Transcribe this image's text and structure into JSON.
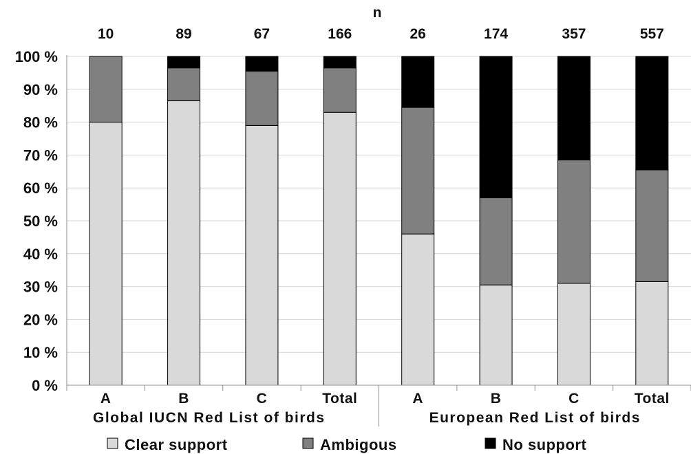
{
  "chart_data": {
    "type": "bar",
    "stacked": true,
    "n_title": "n",
    "n_values": [
      "10",
      "89",
      "67",
      "166",
      "26",
      "174",
      "357",
      "557"
    ],
    "categories": [
      "A",
      "B",
      "C",
      "Total",
      "A",
      "B",
      "C",
      "Total"
    ],
    "groups": [
      {
        "label": "Global IUCN Red List of birds",
        "span": [
          0,
          3
        ]
      },
      {
        "label": "European Red List of birds",
        "span": [
          4,
          7
        ]
      }
    ],
    "ylim": [
      0,
      100
    ],
    "y_ticks": [
      "0 %",
      "10 %",
      "20 %",
      "30 %",
      "40 %",
      "50 %",
      "60 %",
      "70 %",
      "80 %",
      "90 %",
      "100 %"
    ],
    "grid": true,
    "legend_position": "bottom",
    "series": [
      {
        "name": "Clear support",
        "color": "#d9d9d9",
        "values": [
          80,
          86.5,
          79,
          83,
          46,
          30.5,
          31,
          31.5
        ]
      },
      {
        "name": "Ambigous",
        "color": "#808080",
        "values": [
          20,
          10,
          16.5,
          13.5,
          38.5,
          26.5,
          37.5,
          34
        ]
      },
      {
        "name": "No support",
        "color": "#000000",
        "values": [
          0,
          3.5,
          4.5,
          3.5,
          15.5,
          43,
          31.5,
          34.5
        ]
      }
    ]
  }
}
